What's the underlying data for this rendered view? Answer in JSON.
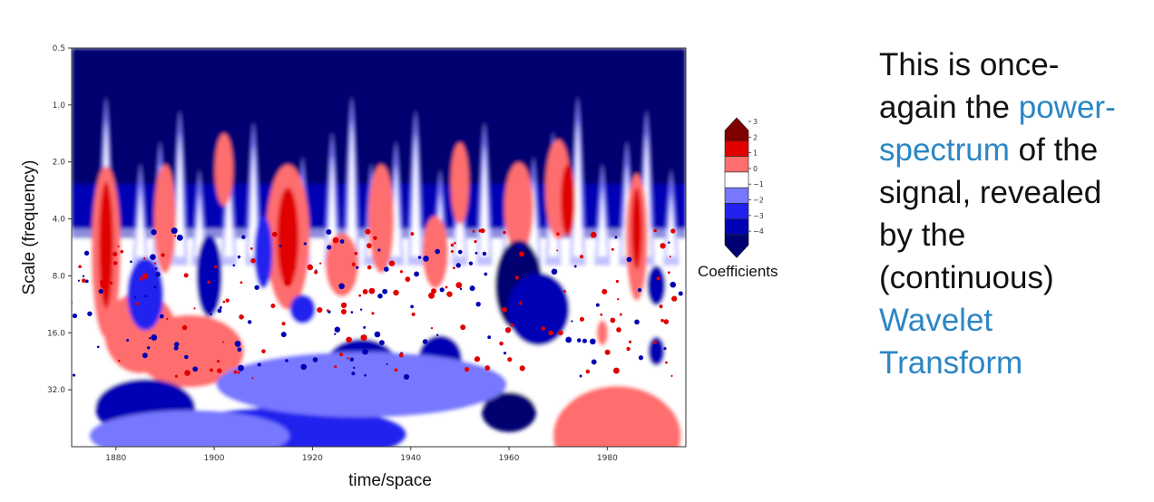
{
  "chart_data": {
    "type": "heatmap",
    "title": "",
    "xlabel": "time/space",
    "ylabel": "Scale (frequency)",
    "x_ticks": [
      1880,
      1900,
      1920,
      1940,
      1960,
      1980
    ],
    "y_ticks": [
      "0.5",
      "1.0",
      "2.0",
      "4.0",
      "8.0",
      "16.0",
      "32.0"
    ],
    "xlim": [
      1871,
      1996
    ],
    "y_scale": "log2",
    "ylim": [
      0.5,
      64
    ],
    "colorbar": {
      "label": "Coefficients",
      "ticks": [
        3,
        2,
        1,
        0,
        -1,
        -2,
        -3,
        -4
      ],
      "colors": [
        "#7f0000",
        "#e00000",
        "#ff6e6e",
        "#ffffff",
        "#7777ff",
        "#2222ee",
        "#0000b4",
        "#000070"
      ]
    },
    "colormap": "seismic",
    "grid": false
  },
  "text": {
    "line1": "This is once-",
    "line2a": "again the ",
    "line2b": "power-",
    "line3a": "spectrum",
    "line3b": " of the",
    "line4": "signal, revealed",
    "line5": "by the",
    "line6": "(continuous)",
    "line7": "Wavelet",
    "line8": "Transform"
  },
  "colors": {
    "highlight": "#2b86c5"
  }
}
